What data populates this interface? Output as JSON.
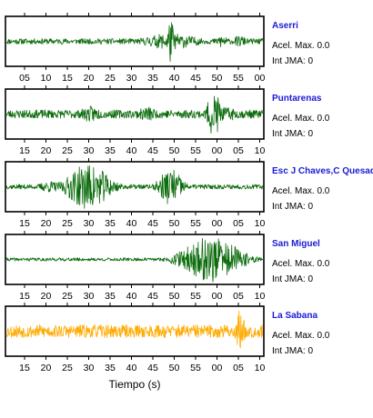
{
  "chart_data": {
    "type": "line",
    "xlabel": "Tiempo (s)",
    "grid": false,
    "legend": "none",
    "panels": [
      {
        "station": "Aserri",
        "acel_max": "Acel. Max. 0.0",
        "int_jma": "Int JMA: 0",
        "color": "#0b6b0b",
        "tick_labels": [
          "05",
          "10",
          "15",
          "20",
          "25",
          "30",
          "35",
          "40",
          "45",
          "50",
          "55",
          "00"
        ],
        "events": [
          {
            "t": 0.64,
            "amp": 1.0,
            "dur": 0.015
          },
          {
            "t": 0.64,
            "amp": 0.35,
            "dur": 0.12
          },
          {
            "t": 0.84,
            "amp": 0.35,
            "dur": 0.02
          },
          {
            "t": 0.91,
            "amp": 0.25,
            "dur": 0.03
          }
        ],
        "noise": 0.12,
        "seed": 11
      },
      {
        "station": "Puntarenas",
        "acel_max": "Acel. Max. 0.0",
        "int_jma": "Int JMA: 0",
        "color": "#0b6b0b",
        "tick_labels": [
          "15",
          "20",
          "25",
          "30",
          "35",
          "40",
          "45",
          "50",
          "55",
          "00",
          "05",
          "10"
        ],
        "events": [
          {
            "t": 0.33,
            "amp": 0.35,
            "dur": 0.05
          },
          {
            "t": 0.55,
            "amp": 0.35,
            "dur": 0.04
          },
          {
            "t": 0.81,
            "amp": 1.0,
            "dur": 0.03
          },
          {
            "t": 0.86,
            "amp": 0.3,
            "dur": 0.06
          }
        ],
        "noise": 0.18,
        "seed": 23
      },
      {
        "station": "Esc J Chaves,C Quesada",
        "acel_max": "Acel. Max. 0.0",
        "int_jma": "Int JMA: 0",
        "color": "#0b6b0b",
        "tick_labels": [
          "15",
          "20",
          "25",
          "30",
          "35",
          "40",
          "45",
          "50",
          "55",
          "00",
          "05",
          "10"
        ],
        "events": [
          {
            "t": 0.32,
            "amp": 1.0,
            "dur": 0.09
          },
          {
            "t": 0.17,
            "amp": 0.25,
            "dur": 0.05
          },
          {
            "t": 0.64,
            "amp": 0.8,
            "dur": 0.05
          }
        ],
        "noise": 0.1,
        "seed": 37
      },
      {
        "station": "San Miguel",
        "acel_max": "Acel. Max. 0.0",
        "int_jma": "Int JMA: 0",
        "color": "#0b6b0b",
        "tick_labels": [
          "15",
          "20",
          "25",
          "30",
          "35",
          "40",
          "45",
          "50",
          "55",
          "00",
          "05",
          "10"
        ],
        "events": [
          {
            "t": 0.8,
            "amp": 1.0,
            "dur": 0.12
          }
        ],
        "noise": 0.07,
        "seed": 41
      },
      {
        "station": "La Sabana",
        "acel_max": "Acel. Max. 0.0",
        "int_jma": "Int JMA: 0",
        "color": "#ffaa00",
        "tick_labels": [
          "15",
          "20",
          "25",
          "30",
          "35",
          "40",
          "45",
          "50",
          "55",
          "00",
          "05",
          "10"
        ],
        "events": [
          {
            "t": 0.91,
            "amp": 1.0,
            "dur": 0.02
          }
        ],
        "noise": 0.28,
        "seed": 53
      }
    ]
  }
}
